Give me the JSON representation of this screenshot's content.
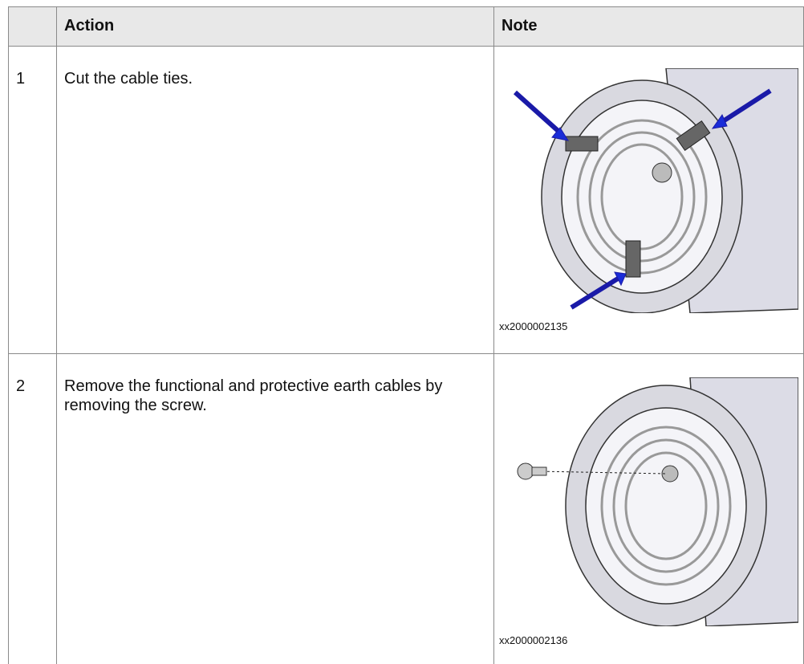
{
  "table": {
    "header": [
      "Action",
      "Note"
    ],
    "rows": [
      [
        "1",
        "Cut the cable ties.",
        "xx2000002135"
      ],
      [
        "2",
        "Remove the functional and protective earth cables by removing the screw.",
        "xx2000002136"
      ]
    ]
  }
}
